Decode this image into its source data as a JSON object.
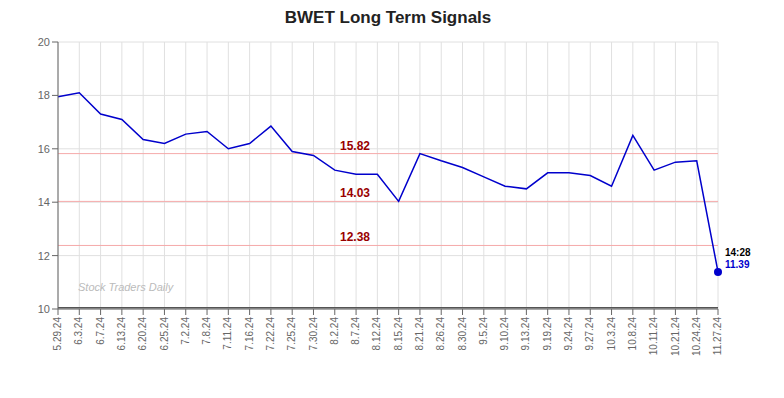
{
  "chart_data": {
    "type": "line",
    "title": "BWET Long Term Signals",
    "categories": [
      "5.29.24",
      "6.3.24",
      "6.7.24",
      "6.13.24",
      "6.20.24",
      "6.25.24",
      "7.2.24",
      "7.8.24",
      "7.11.24",
      "7.16.24",
      "7.22.24",
      "7.25.24",
      "7.30.24",
      "8.2.24",
      "8.7.24",
      "8.12.24",
      "8.15.24",
      "8.21.24",
      "8.26.24",
      "8.30.24",
      "9.5.24",
      "9.10.24",
      "9.13.24",
      "9.19.24",
      "9.24.24",
      "9.27.24",
      "10.3.24",
      "10.8.24",
      "10.11.24",
      "10.21.24",
      "10.24.24",
      "11.27.24"
    ],
    "values": [
      17.95,
      18.1,
      17.3,
      17.1,
      16.35,
      16.2,
      16.55,
      16.65,
      16.0,
      16.2,
      16.85,
      15.9,
      15.75,
      15.2,
      15.05,
      15.05,
      14.03,
      15.82,
      15.55,
      15.3,
      14.95,
      14.6,
      14.5,
      15.1,
      15.1,
      15.0,
      14.6,
      16.5,
      15.2,
      15.5,
      15.55,
      11.39
    ],
    "color": "#0000cc",
    "ylim": [
      10,
      20
    ],
    "yticks": [
      10,
      12,
      14,
      16,
      18,
      20
    ],
    "grid": true,
    "hlines": [
      {
        "value": 15.82,
        "label": "15.82",
        "color": "#f5aaaa",
        "label_color": "#990000"
      },
      {
        "value": 14.03,
        "label": "14.03",
        "color": "#f5aaaa",
        "label_color": "#990000"
      },
      {
        "value": 12.38,
        "label": "12.38",
        "color": "#f5aaaa",
        "label_color": "#990000"
      },
      {
        "value": 10.05,
        "color": "#555555"
      }
    ],
    "annotations": [
      {
        "category": "11.27.24",
        "value": 11.39,
        "marker": "circle",
        "color": "#0000cc",
        "lines": [
          {
            "text": "14:28",
            "color": "#000000"
          },
          {
            "text": "11.39",
            "color": "#0000cc"
          }
        ]
      }
    ],
    "watermark": {
      "text": "Stock Traders Daily",
      "color": "#bbbbbb"
    }
  }
}
